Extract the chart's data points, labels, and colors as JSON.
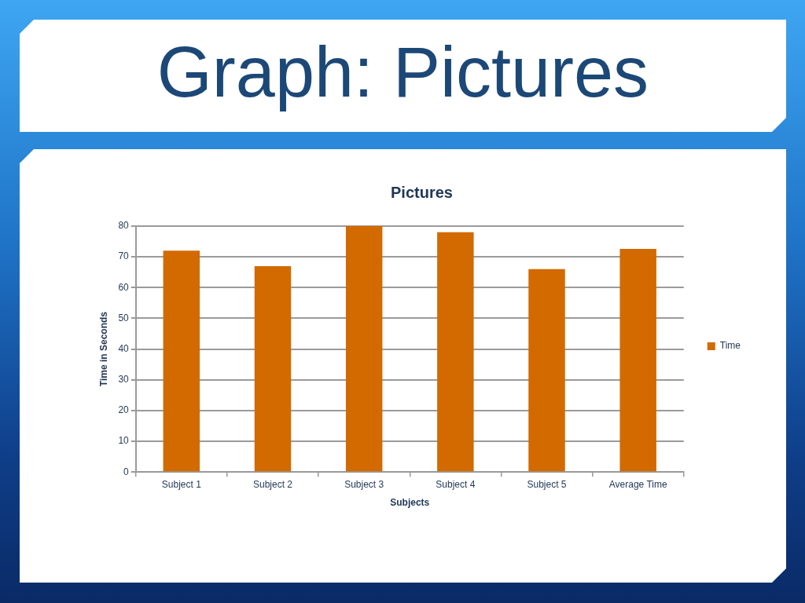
{
  "chart_data": {
    "type": "bar",
    "title": "Graph: Pictures",
    "subtitle": "Pictures",
    "xlabel": "Subjects",
    "ylabel": "Time in Seconds",
    "categories": [
      "Subject 1",
      "Subject 2",
      "Subject 3",
      "Subject 4",
      "Subject 5",
      "Average Time"
    ],
    "series": [
      {
        "name": "Time",
        "color": "#d26a00",
        "values": [
          72,
          67,
          80,
          78,
          66,
          72.6
        ]
      }
    ],
    "ylim": [
      0,
      80
    ],
    "yticks": [
      0,
      10,
      20,
      30,
      40,
      50,
      60,
      70,
      80
    ],
    "grid": "y",
    "legend": "right"
  }
}
